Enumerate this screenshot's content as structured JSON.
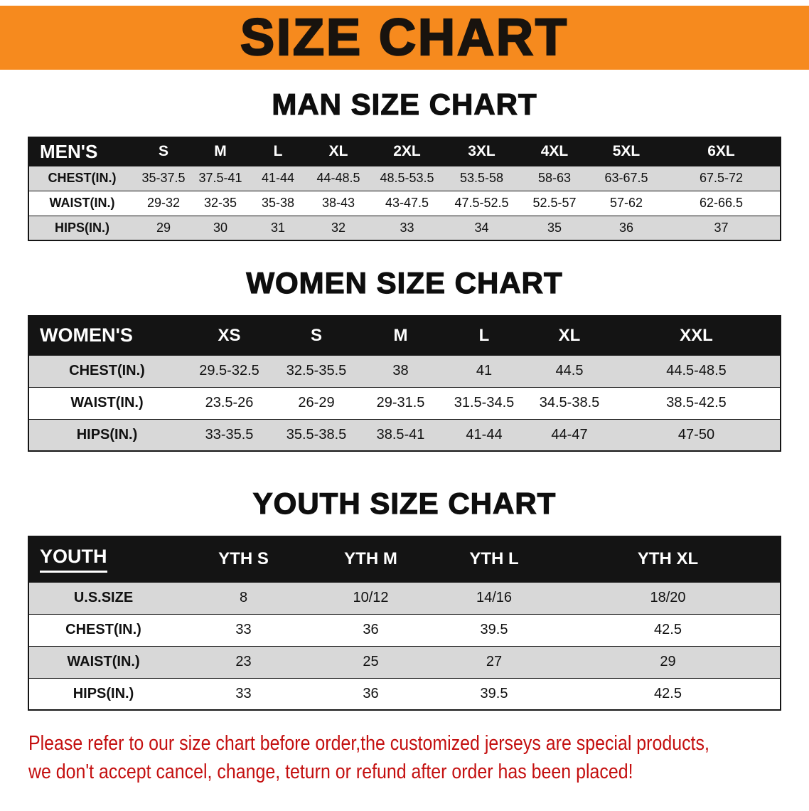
{
  "banner": {
    "title": "SIZE CHART"
  },
  "colors": {
    "banner_bg": "#F68A1E",
    "header_bg": "#141414",
    "stripe_bg": "#d8d8d8",
    "disclaimer_text": "#C40F0F"
  },
  "tables": [
    {
      "id": "men",
      "heading": "MAN SIZE CHART",
      "header": [
        "MEN'S",
        "S",
        "M",
        "L",
        "XL",
        "2XL",
        "3XL",
        "4XL",
        "5XL",
        "6XL"
      ],
      "rows": [
        {
          "label": "CHEST(IN.)",
          "values": [
            "35-37.5",
            "37.5-41",
            "41-44",
            "44-48.5",
            "48.5-53.5",
            "53.5-58",
            "58-63",
            "63-67.5",
            "67.5-72"
          ]
        },
        {
          "label": "WAIST(IN.)",
          "values": [
            "29-32",
            "32-35",
            "35-38",
            "38-43",
            "43-47.5",
            "47.5-52.5",
            "52.5-57",
            "57-62",
            "62-66.5"
          ]
        },
        {
          "label": "HIPS(IN.)",
          "values": [
            "29",
            "30",
            "31",
            "32",
            "33",
            "34",
            "35",
            "36",
            "37"
          ]
        }
      ]
    },
    {
      "id": "women",
      "heading": "WOMEN SIZE CHART",
      "header": [
        "WOMEN'S",
        "XS",
        "S",
        "M",
        "L",
        "XL",
        "XXL"
      ],
      "rows": [
        {
          "label": "CHEST(IN.)",
          "values": [
            "29.5-32.5",
            "32.5-35.5",
            "38",
            "41",
            "44.5",
            "44.5-48.5"
          ]
        },
        {
          "label": "WAIST(IN.)",
          "values": [
            "23.5-26",
            "26-29",
            "29-31.5",
            "31.5-34.5",
            "34.5-38.5",
            "38.5-42.5"
          ]
        },
        {
          "label": "HIPS(IN.)",
          "values": [
            "33-35.5",
            "35.5-38.5",
            "38.5-41",
            "41-44",
            "44-47",
            "47-50"
          ]
        }
      ]
    },
    {
      "id": "youth",
      "heading": "YOUTH SIZE CHART",
      "header": [
        "YOUTH",
        "YTH S",
        "YTH M",
        "YTH L",
        "YTH XL"
      ],
      "rows": [
        {
          "label": "U.S.SIZE",
          "values": [
            "8",
            "10/12",
            "14/16",
            "18/20"
          ]
        },
        {
          "label": "CHEST(IN.)",
          "values": [
            "33",
            "36",
            "39.5",
            "42.5"
          ]
        },
        {
          "label": "WAIST(IN.)",
          "values": [
            "23",
            "25",
            "27",
            "29"
          ]
        },
        {
          "label": "HIPS(IN.)",
          "values": [
            "33",
            "36",
            "39.5",
            "42.5"
          ]
        }
      ]
    }
  ],
  "disclaimer": {
    "line1": "Please refer to our size chart before order,the customized jerseys are special products,",
    "line2": "we don't accept cancel, change, teturn or refund after order has been placed!"
  }
}
